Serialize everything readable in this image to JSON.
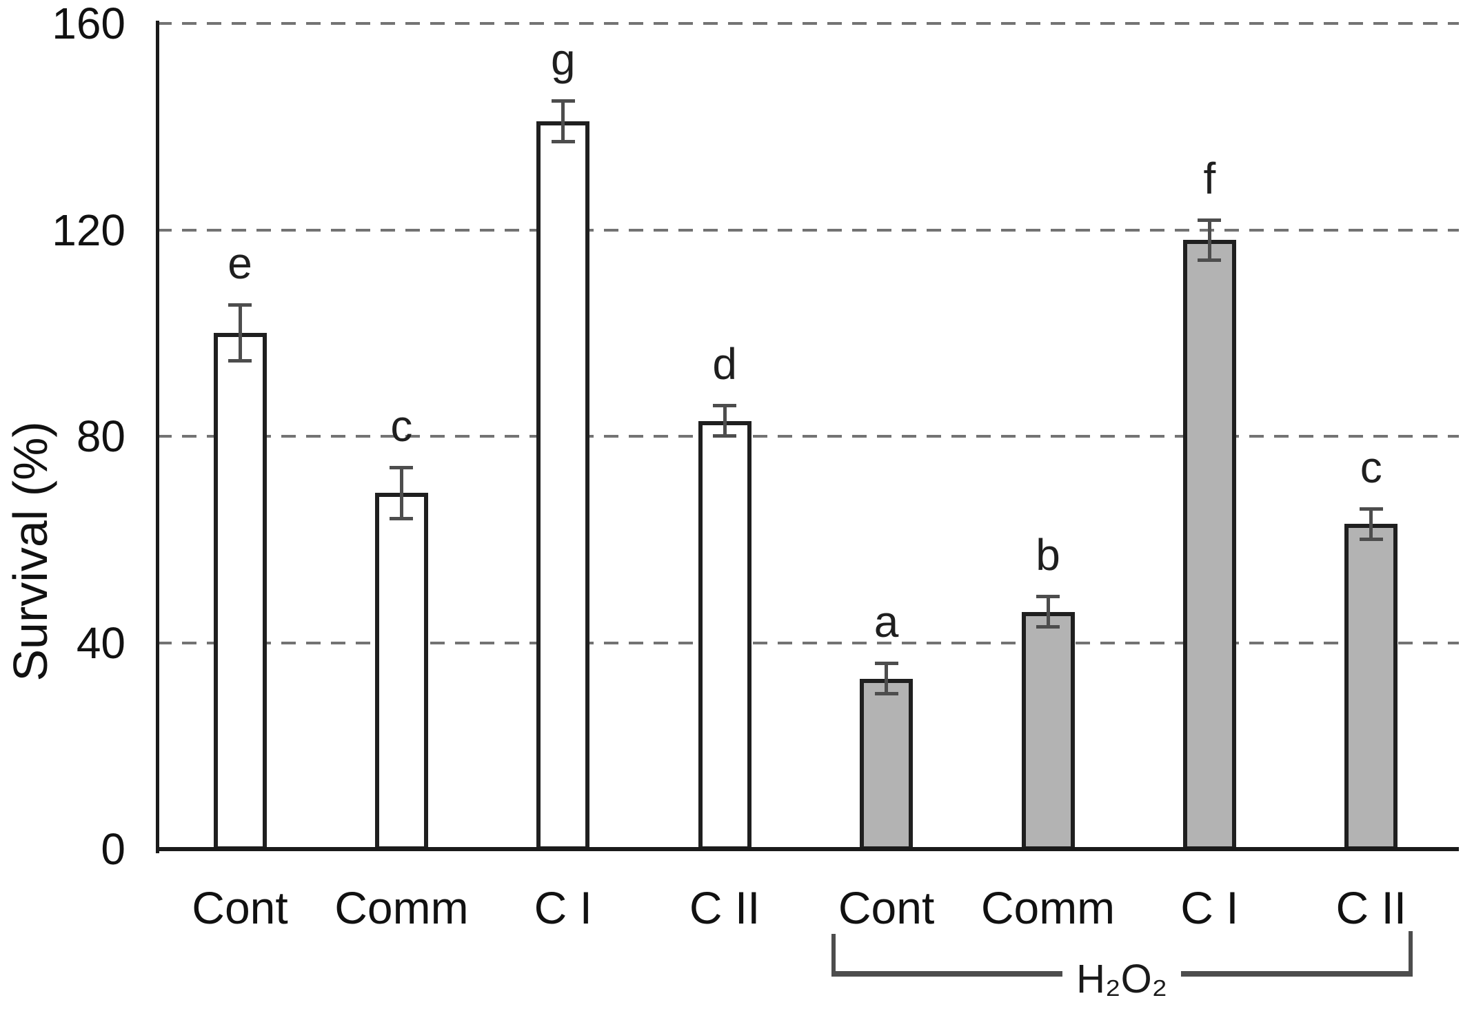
{
  "chart_data": {
    "type": "bar",
    "title": "",
    "ylabel": "Survival (%)",
    "xlabel": "",
    "ylim": [
      0,
      160
    ],
    "yticks": [
      0,
      40,
      80,
      120,
      160
    ],
    "grid": {
      "axis": "y",
      "style": "dashed",
      "at": [
        40,
        80,
        120,
        160
      ]
    },
    "legend_position": "none",
    "categories": [
      "Cont",
      "Comm",
      "C I",
      "C II",
      "Cont",
      "Comm",
      "C I",
      "C II"
    ],
    "series": [
      {
        "name": "",
        "fill": "#ffffff",
        "bars": [
          {
            "category": "Cont",
            "value": 100,
            "error": 5.5,
            "letter": "e"
          },
          {
            "category": "Comm",
            "value": 69,
            "error": 5,
            "letter": "c"
          },
          {
            "category": "C I",
            "value": 141,
            "error": 4,
            "letter": "g"
          },
          {
            "category": "C II",
            "value": 83,
            "error": 3,
            "letter": "d"
          }
        ]
      },
      {
        "name": "H₂O₂",
        "fill": "#b3b3b3",
        "bars": [
          {
            "category": "Cont",
            "value": 33,
            "error": 3,
            "letter": "a"
          },
          {
            "category": "Comm",
            "value": 46,
            "error": 3,
            "letter": "b"
          },
          {
            "category": "C I",
            "value": 118,
            "error": 4,
            "letter": "f"
          },
          {
            "category": "C II",
            "value": 63,
            "error": 3,
            "letter": "c"
          }
        ]
      }
    ],
    "group_bracket": {
      "label": "H₂O₂",
      "from_category_index": 4,
      "to_category_index": 7
    }
  },
  "colors": {
    "bar_outline": "#1f1f1f",
    "white_bar_fill": "#ffffff",
    "gray_bar_fill": "#b3b3b3",
    "error_bar": "#4d4d4d",
    "gridline": "#737373",
    "axis": "#1a1a1a",
    "text": "#111111"
  }
}
